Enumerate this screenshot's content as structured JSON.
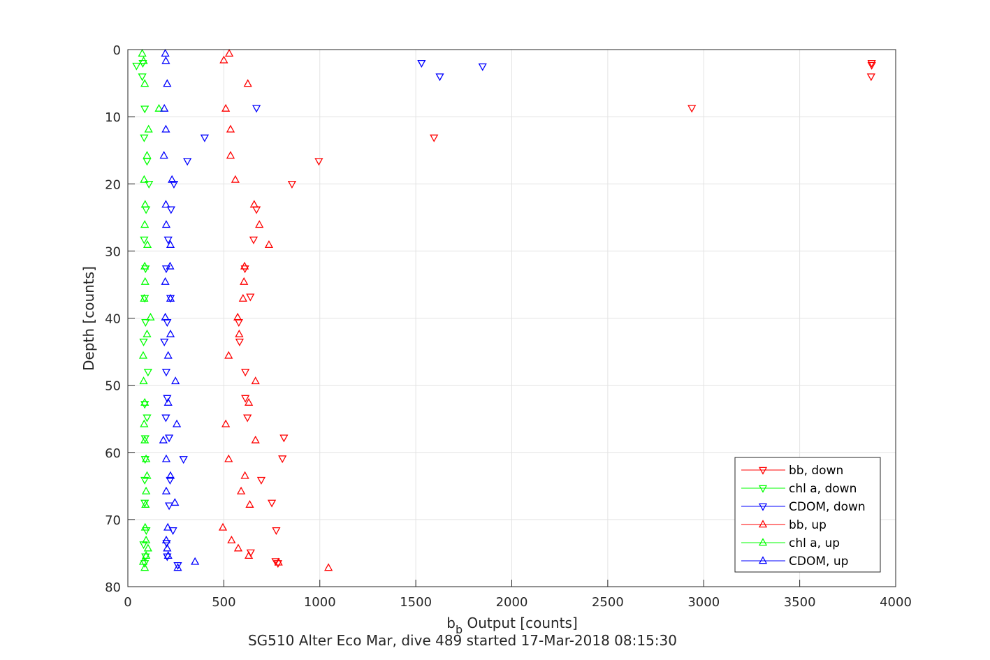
{
  "chart_data": {
    "type": "scatter",
    "xlabel_main": "b",
    "xlabel_sub": "b",
    "xlabel_rest": " Output [counts]",
    "ylabel": "Depth [counts]",
    "caption": "SG510 Alter Eco Mar, dive 489 started 17-Mar-2018 08:15:30",
    "xlim": [
      0,
      4000
    ],
    "ylim": [
      0,
      80
    ],
    "y_reversed": true,
    "grid": true,
    "legend_position": "bottom-right",
    "x_ticks": [
      "0",
      "500",
      "1000",
      "1500",
      "2000",
      "2500",
      "3000",
      "3500",
      "4000"
    ],
    "y_ticks": [
      "0",
      "10",
      "20",
      "30",
      "40",
      "50",
      "60",
      "70",
      "80"
    ],
    "series": [
      {
        "name": "bb, down",
        "color": "#ff0000",
        "marker": "triangle-down",
        "points": [
          [
            3875,
            2
          ],
          [
            3875,
            2.3
          ],
          [
            3872,
            4
          ],
          [
            2938,
            8.7
          ],
          [
            1595,
            13.1
          ],
          [
            995,
            16.6
          ],
          [
            855,
            20
          ],
          [
            670,
            23.8
          ],
          [
            655,
            28.3
          ],
          [
            610,
            32.6
          ],
          [
            638,
            36.8
          ],
          [
            578,
            40.6
          ],
          [
            582,
            43.5
          ],
          [
            612,
            48
          ],
          [
            612,
            51.9
          ],
          [
            623,
            54.8
          ],
          [
            813,
            57.8
          ],
          [
            805,
            60.9
          ],
          [
            695,
            64.1
          ],
          [
            750,
            67.5
          ],
          [
            773,
            71.6
          ],
          [
            640,
            74.9
          ],
          [
            770,
            76.2
          ],
          [
            782,
            76.5
          ]
        ]
      },
      {
        "name": "chl a, down",
        "color": "#00ff00",
        "marker": "triangle-down",
        "points": [
          [
            78,
            2
          ],
          [
            45,
            2.4
          ],
          [
            75,
            4
          ],
          [
            88,
            8.8
          ],
          [
            85,
            13.1
          ],
          [
            100,
            16.6
          ],
          [
            110,
            20
          ],
          [
            95,
            23.8
          ],
          [
            85,
            28.3
          ],
          [
            92,
            32.6
          ],
          [
            88,
            37
          ],
          [
            92,
            40.6
          ],
          [
            82,
            43.5
          ],
          [
            105,
            48
          ],
          [
            88,
            52.8
          ],
          [
            100,
            54.8
          ],
          [
            90,
            57.9
          ],
          [
            90,
            61
          ],
          [
            88,
            64.1
          ],
          [
            88,
            67.5
          ],
          [
            96,
            71.6
          ],
          [
            82,
            73.7
          ],
          [
            92,
            75.5
          ],
          [
            88,
            76.5
          ]
        ]
      },
      {
        "name": "CDOM, down",
        "color": "#0000ff",
        "marker": "triangle-down",
        "points": [
          [
            1530,
            2
          ],
          [
            1848,
            2.5
          ],
          [
            1625,
            4
          ],
          [
            670,
            8.7
          ],
          [
            400,
            13.1
          ],
          [
            310,
            16.6
          ],
          [
            240,
            20
          ],
          [
            225,
            23.8
          ],
          [
            210,
            28.3
          ],
          [
            200,
            32.6
          ],
          [
            222,
            37
          ],
          [
            205,
            40.6
          ],
          [
            190,
            43.5
          ],
          [
            200,
            48
          ],
          [
            205,
            51.9
          ],
          [
            198,
            54.8
          ],
          [
            215,
            57.8
          ],
          [
            290,
            61
          ],
          [
            220,
            64.1
          ],
          [
            215,
            67.9
          ],
          [
            235,
            71.6
          ],
          [
            202,
            73.5
          ],
          [
            205,
            75.5
          ],
          [
            260,
            76.8
          ]
        ]
      },
      {
        "name": "bb, up",
        "color": "#ff0000",
        "marker": "triangle-up",
        "points": [
          [
            528,
            0.6
          ],
          [
            500,
            1.6
          ],
          [
            625,
            5.1
          ],
          [
            510,
            8.8
          ],
          [
            535,
            11.9
          ],
          [
            535,
            15.8
          ],
          [
            560,
            19.4
          ],
          [
            658,
            23.1
          ],
          [
            685,
            26.1
          ],
          [
            735,
            29.1
          ],
          [
            608,
            32.3
          ],
          [
            605,
            34.6
          ],
          [
            600,
            37.1
          ],
          [
            572,
            39.9
          ],
          [
            580,
            42.4
          ],
          [
            525,
            45.6
          ],
          [
            665,
            49.4
          ],
          [
            630,
            52.6
          ],
          [
            510,
            55.8
          ],
          [
            665,
            58.2
          ],
          [
            525,
            61
          ],
          [
            610,
            63.5
          ],
          [
            590,
            65.8
          ],
          [
            635,
            67.8
          ],
          [
            495,
            71.2
          ],
          [
            540,
            73.1
          ],
          [
            575,
            74.3
          ],
          [
            630,
            75.4
          ],
          [
            785,
            76.4
          ],
          [
            1045,
            77.2
          ]
        ]
      },
      {
        "name": "chl a, up",
        "color": "#00ff00",
        "marker": "triangle-up",
        "points": [
          [
            75,
            0.6
          ],
          [
            82,
            1.7
          ],
          [
            88,
            5.1
          ],
          [
            162,
            8.8
          ],
          [
            108,
            11.9
          ],
          [
            100,
            15.8
          ],
          [
            85,
            19.4
          ],
          [
            90,
            23.1
          ],
          [
            88,
            26.1
          ],
          [
            102,
            29.1
          ],
          [
            88,
            32.3
          ],
          [
            90,
            34.6
          ],
          [
            85,
            37.1
          ],
          [
            118,
            39.9
          ],
          [
            100,
            42.4
          ],
          [
            80,
            45.6
          ],
          [
            82,
            49.4
          ],
          [
            88,
            52.6
          ],
          [
            85,
            55.8
          ],
          [
            88,
            58.2
          ],
          [
            95,
            61
          ],
          [
            100,
            63.5
          ],
          [
            95,
            65.8
          ],
          [
            92,
            67.8
          ],
          [
            90,
            71.2
          ],
          [
            95,
            73.1
          ],
          [
            105,
            74.3
          ],
          [
            95,
            75.4
          ],
          [
            80,
            76.3
          ],
          [
            88,
            77.2
          ]
        ]
      },
      {
        "name": "CDOM, up",
        "color": "#0000ff",
        "marker": "triangle-up",
        "points": [
          [
            195,
            0.6
          ],
          [
            198,
            1.7
          ],
          [
            205,
            5.1
          ],
          [
            190,
            8.8
          ],
          [
            198,
            11.9
          ],
          [
            188,
            15.8
          ],
          [
            230,
            19.4
          ],
          [
            198,
            23.1
          ],
          [
            200,
            26.1
          ],
          [
            222,
            29.1
          ],
          [
            220,
            32.3
          ],
          [
            195,
            34.6
          ],
          [
            222,
            37.1
          ],
          [
            195,
            39.9
          ],
          [
            222,
            42.4
          ],
          [
            210,
            45.6
          ],
          [
            248,
            49.4
          ],
          [
            210,
            52.6
          ],
          [
            255,
            55.8
          ],
          [
            185,
            58.2
          ],
          [
            200,
            61
          ],
          [
            222,
            63.5
          ],
          [
            200,
            65.8
          ],
          [
            245,
            67.5
          ],
          [
            208,
            71.2
          ],
          [
            200,
            73.1
          ],
          [
            205,
            74.3
          ],
          [
            210,
            75.4
          ],
          [
            350,
            76.3
          ],
          [
            260,
            77.2
          ]
        ]
      }
    ]
  }
}
